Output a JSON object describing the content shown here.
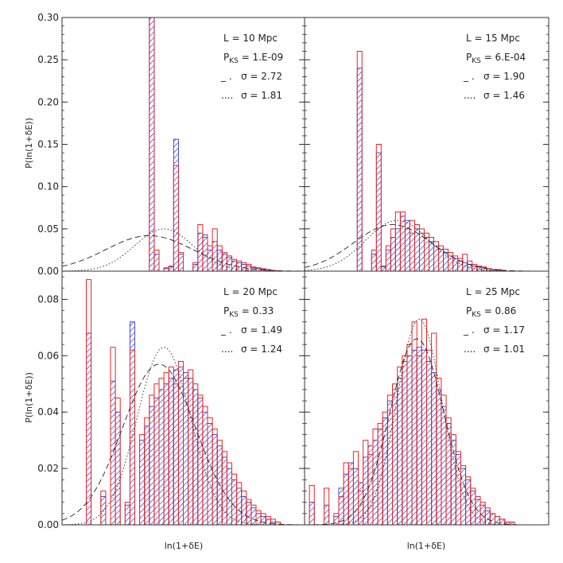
{
  "figure": {
    "ylabel": "P(ln(1+δE))",
    "xlabel": "ln(1+δE)"
  },
  "chart_data": [
    {
      "type": "bar",
      "panel": "top-left",
      "annotations": [
        "L = 10 Mpc",
        "PKS = 1.E-09",
        "σ = 2.72",
        "σ = 1.81"
      ],
      "ylim": [
        0,
        0.3
      ],
      "yticks": [
        "0.00",
        "0.05",
        "0.10",
        "0.15",
        "0.20",
        "0.25",
        "0.30"
      ],
      "xlim": [
        0,
        50
      ],
      "bin_values": [
        0,
        0,
        0,
        0,
        0,
        0,
        0,
        0,
        0,
        0,
        0,
        0,
        0,
        0,
        0,
        0,
        0,
        0,
        0.31,
        0.02,
        0,
        0.003,
        0.005,
        0.156,
        0.02,
        0.0,
        0,
        0.008,
        0.045,
        0.043,
        0.025,
        0.035,
        0.025,
        0.02,
        0.016,
        0.012,
        0.01,
        0.008,
        0.006,
        0.004,
        0.003,
        0.002,
        0.001,
        0.001,
        0.0005,
        0,
        0,
        0,
        0,
        0
      ],
      "series": [
        {
          "name": "blue",
          "values": [
            0,
            0,
            0,
            0,
            0,
            0,
            0,
            0,
            0,
            0,
            0,
            0,
            0,
            0,
            0,
            0,
            0,
            0,
            0.31,
            0.02,
            0,
            0.003,
            0.005,
            0.156,
            0.02,
            0.0,
            0,
            0.008,
            0.045,
            0.043,
            0.025,
            0.035,
            0.025,
            0.02,
            0.016,
            0.012,
            0.01,
            0.008,
            0.006,
            0.004,
            0.003,
            0.002,
            0.001,
            0.001,
            0.0005,
            0,
            0,
            0,
            0,
            0
          ]
        },
        {
          "name": "red",
          "values": [
            0,
            0,
            0,
            0,
            0,
            0,
            0,
            0,
            0,
            0,
            0,
            0,
            0,
            0,
            0,
            0,
            0,
            0,
            0.3,
            0.025,
            0,
            0.004,
            0.006,
            0.125,
            0.022,
            0.0,
            0,
            0.01,
            0.055,
            0.04,
            0.03,
            0.05,
            0.03,
            0.022,
            0.018,
            0.014,
            0.012,
            0.01,
            0.008,
            0.005,
            0.004,
            0.003,
            0.002,
            0.001,
            0.0005,
            0,
            0,
            0,
            0,
            0
          ]
        }
      ],
      "curves": [
        {
          "name": "σ = 2.72",
          "style": "dashed",
          "mu": 18,
          "sigma": 9.0,
          "amp": 0.042
        },
        {
          "name": "σ = 1.81",
          "style": "dotted",
          "mu": 21,
          "sigma": 6.0,
          "amp": 0.05
        }
      ]
    },
    {
      "type": "bar",
      "panel": "top-right",
      "annotations": [
        "L = 15 Mpc",
        "PKS = 6.E-04",
        "σ = 1.90",
        "σ = 1.46"
      ],
      "ylim": [
        0,
        0.3
      ],
      "yticks": [],
      "xlim": [
        0,
        50
      ],
      "series": [
        {
          "name": "blue",
          "values": [
            0,
            0,
            0,
            0,
            0,
            0,
            0,
            0,
            0,
            0,
            0,
            0.24,
            0.0,
            0,
            0.02,
            0.14,
            0.005,
            0.025,
            0.04,
            0.05,
            0.065,
            0.06,
            0.045,
            0.05,
            0.045,
            0.04,
            0.035,
            0.03,
            0.026,
            0.022,
            0.018,
            0.015,
            0.012,
            0.01,
            0.008,
            0.006,
            0.005,
            0.004,
            0.003,
            0.002,
            0.001,
            0.001,
            0,
            0,
            0,
            0,
            0,
            0,
            0,
            0,
            0
          ]
        },
        {
          "name": "red",
          "values": [
            0,
            0,
            0,
            0,
            0,
            0,
            0,
            0,
            0,
            0,
            0,
            0.26,
            0.0,
            0,
            0.025,
            0.15,
            0.006,
            0.03,
            0.05,
            0.07,
            0.07,
            0.05,
            0.06,
            0.055,
            0.05,
            0.045,
            0.04,
            0.035,
            0.03,
            0.026,
            0.022,
            0.018,
            0.015,
            0.02,
            0.012,
            0.008,
            0.006,
            0.005,
            0.003,
            0.002,
            0.002,
            0.001,
            0,
            0,
            0,
            0,
            0,
            0,
            0,
            0,
            0
          ]
        }
      ],
      "curves": [
        {
          "name": "σ = 1.90",
          "style": "dashed",
          "mu": 18,
          "sigma": 8.0,
          "amp": 0.055
        },
        {
          "name": "σ = 1.46",
          "style": "dotted",
          "mu": 19,
          "sigma": 6.5,
          "amp": 0.06
        }
      ]
    },
    {
      "type": "bar",
      "panel": "bottom-left",
      "annotations": [
        "L = 20 Mpc",
        "PKS = 0.33",
        "σ = 1.49",
        "σ = 1.24"
      ],
      "ylim": [
        0,
        0.09
      ],
      "yticks": [
        "0.00",
        "0.02",
        "0.04",
        "0.06",
        "0.08"
      ],
      "xlim": [
        0,
        50
      ],
      "series": [
        {
          "name": "blue",
          "values": [
            0,
            0,
            0,
            0,
            0,
            0.068,
            0,
            0,
            0.01,
            0,
            0.051,
            0.04,
            0,
            0.007,
            0.072,
            0.0,
            0.03,
            0.035,
            0.042,
            0.045,
            0.048,
            0.05,
            0.052,
            0.055,
            0.056,
            0.054,
            0.052,
            0.048,
            0.045,
            0.04,
            0.036,
            0.032,
            0.028,
            0.024,
            0.02,
            0.016,
            0.013,
            0.01,
            0.008,
            0.006,
            0.004,
            0.003,
            0.002,
            0.001,
            0.001,
            0,
            0,
            0,
            0,
            0
          ]
        },
        {
          "name": "red",
          "values": [
            0,
            0,
            0,
            0,
            0,
            0.087,
            0,
            0,
            0.012,
            0,
            0.063,
            0.045,
            0,
            0.008,
            0.062,
            0.0,
            0.032,
            0.038,
            0.046,
            0.05,
            0.052,
            0.054,
            0.056,
            0.05,
            0.058,
            0.052,
            0.055,
            0.05,
            0.046,
            0.042,
            0.038,
            0.034,
            0.03,
            0.026,
            0.022,
            0.018,
            0.015,
            0.012,
            0.009,
            0.007,
            0.005,
            0.004,
            0.003,
            0.002,
            0.001,
            0,
            0,
            0,
            0,
            0
          ]
        }
      ],
      "curves": [
        {
          "name": "σ = 1.49",
          "style": "dashed",
          "mu": 20,
          "sigma": 7.5,
          "amp": 0.057
        },
        {
          "name": "σ = 1.24",
          "style": "dotted",
          "mu": 21,
          "sigma": 5.5,
          "amp": 0.063
        }
      ]
    },
    {
      "type": "bar",
      "panel": "bottom-right",
      "annotations": [
        "L = 25 Mpc",
        "PKS = 0.86",
        "σ = 1.17",
        "σ = 1.01"
      ],
      "ylim": [
        0,
        0.09
      ],
      "yticks": [],
      "xlim": [
        0,
        50
      ],
      "series": [
        {
          "name": "blue",
          "values": [
            0,
            0.008,
            0,
            0,
            0.007,
            0,
            0.003,
            0.013,
            0.018,
            0.022,
            0.02,
            0.015,
            0.024,
            0.028,
            0.03,
            0.034,
            0.038,
            0.044,
            0.048,
            0.052,
            0.058,
            0.06,
            0.062,
            0.063,
            0.062,
            0.058,
            0.054,
            0.048,
            0.042,
            0.036,
            0.03,
            0.025,
            0.02,
            0.016,
            0.012,
            0.009,
            0.007,
            0.005,
            0.004,
            0.003,
            0.002,
            0.001,
            0.001,
            0,
            0,
            0,
            0,
            0,
            0,
            0
          ]
        },
        {
          "name": "red",
          "values": [
            0,
            0.014,
            0,
            0,
            0.013,
            0,
            0.004,
            0.01,
            0.022,
            0.02,
            0.026,
            0.012,
            0.03,
            0.025,
            0.034,
            0.036,
            0.04,
            0.046,
            0.05,
            0.056,
            0.06,
            0.064,
            0.072,
            0.06,
            0.073,
            0.062,
            0.068,
            0.052,
            0.046,
            0.038,
            0.032,
            0.026,
            0.021,
            0.017,
            0.013,
            0.01,
            0.008,
            0.006,
            0.004,
            0.003,
            0.002,
            0.001,
            0.001,
            0,
            0,
            0,
            0,
            0,
            0,
            0
          ]
        }
      ],
      "curves": [
        {
          "name": "σ = 1.17",
          "style": "dashed",
          "mu": 23,
          "sigma": 5.5,
          "amp": 0.066
        },
        {
          "name": "σ = 1.01",
          "style": "dotted",
          "mu": 23.5,
          "sigma": 4.6,
          "amp": 0.073
        }
      ]
    }
  ]
}
